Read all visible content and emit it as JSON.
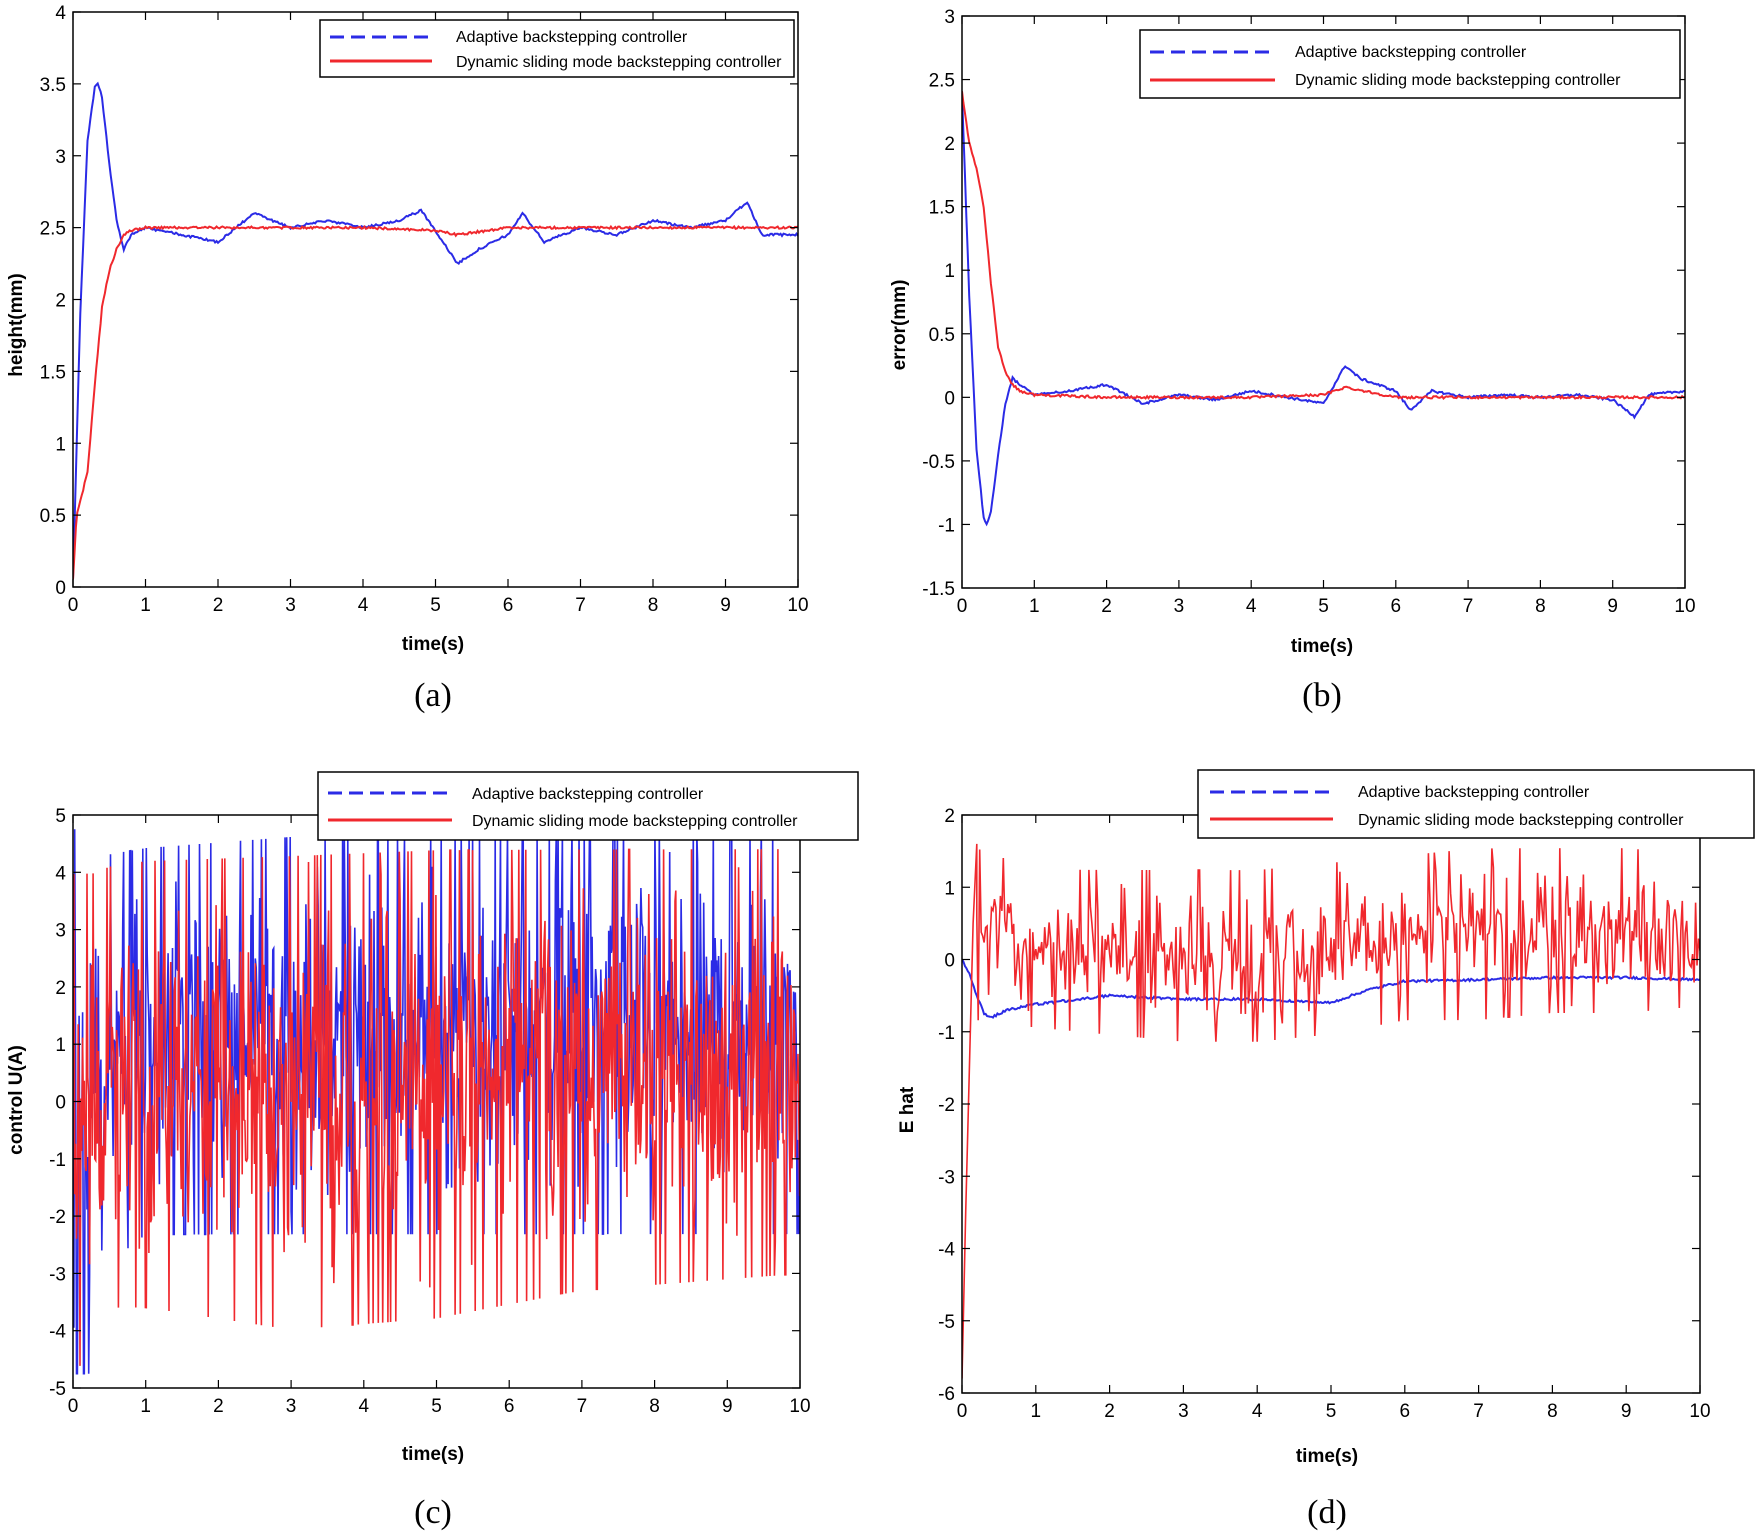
{
  "figure": {
    "colors": {
      "adaptive": "#2b2be6",
      "sliding": "#f0282d",
      "axes": "#000000"
    },
    "legend_labels": [
      "Adaptive backstepping controller",
      "Dynamic sliding mode backstepping controller"
    ]
  },
  "chart_data": [
    {
      "id": "a",
      "type": "line",
      "caption": "(a)",
      "xlabel": "time(s)",
      "ylabel": "height(mm)",
      "xlim": [
        0,
        10
      ],
      "ylim": [
        0,
        4
      ],
      "xticks": [
        0,
        1,
        2,
        3,
        4,
        5,
        6,
        7,
        8,
        9,
        10
      ],
      "yticks": [
        0,
        0.5,
        1,
        1.5,
        2,
        2.5,
        3,
        3.5,
        4
      ],
      "legend": {
        "entries": [
          "Adaptive backstepping controller",
          "Dynamic sliding mode backstepping controller"
        ],
        "location": "top-right"
      },
      "series": [
        {
          "name": "Adaptive backstepping controller",
          "color": "#2b2be6",
          "x": [
            0,
            0.1,
            0.2,
            0.3,
            0.35,
            0.4,
            0.5,
            0.6,
            0.7,
            0.8,
            1,
            1.5,
            2,
            2.5,
            3,
            3.5,
            4,
            4.5,
            4.8,
            5,
            5.3,
            5.6,
            6,
            6.2,
            6.5,
            7,
            7.5,
            8,
            8.5,
            9,
            9.3,
            9.5,
            10
          ],
          "y": [
            0.05,
            1.9,
            3.1,
            3.48,
            3.5,
            3.4,
            2.95,
            2.55,
            2.35,
            2.45,
            2.5,
            2.45,
            2.4,
            2.6,
            2.5,
            2.55,
            2.5,
            2.55,
            2.62,
            2.48,
            2.25,
            2.35,
            2.45,
            2.6,
            2.4,
            2.5,
            2.45,
            2.55,
            2.5,
            2.55,
            2.68,
            2.45,
            2.45
          ]
        },
        {
          "name": "Dynamic sliding mode backstepping controller",
          "color": "#f0282d",
          "x": [
            0,
            0.05,
            0.1,
            0.2,
            0.3,
            0.4,
            0.5,
            0.6,
            0.7,
            0.8,
            1,
            1.5,
            2,
            3,
            4,
            5,
            5.3,
            6,
            7,
            8,
            9,
            10
          ],
          "y": [
            0.05,
            0.5,
            0.6,
            0.8,
            1.4,
            1.95,
            2.2,
            2.35,
            2.45,
            2.48,
            2.5,
            2.5,
            2.5,
            2.5,
            2.5,
            2.48,
            2.45,
            2.5,
            2.5,
            2.5,
            2.5,
            2.5
          ]
        }
      ]
    },
    {
      "id": "b",
      "type": "line",
      "caption": "(b)",
      "xlabel": "time(s)",
      "ylabel": "error(mm)",
      "xlim": [
        0,
        10
      ],
      "ylim": [
        -1.5,
        3
      ],
      "xticks": [
        0,
        1,
        2,
        3,
        4,
        5,
        6,
        7,
        8,
        9,
        10
      ],
      "yticks": [
        -1.5,
        -1,
        -0.5,
        0,
        0.5,
        1,
        1.5,
        2,
        2.5,
        3
      ],
      "legend": {
        "entries": [
          "Adaptive backstepping controller",
          "Dynamic sliding mode backstepping controller"
        ],
        "location": "top-right"
      },
      "series": [
        {
          "name": "Adaptive backstepping controller",
          "color": "#2b2be6",
          "x": [
            0,
            0.1,
            0.2,
            0.3,
            0.35,
            0.4,
            0.5,
            0.6,
            0.7,
            0.8,
            1,
            1.5,
            2,
            2.5,
            3,
            3.5,
            4,
            4.5,
            5,
            5.3,
            5.5,
            6,
            6.2,
            6.5,
            7,
            7.5,
            8,
            8.5,
            9,
            9.3,
            9.5,
            10
          ],
          "y": [
            2.4,
            0.8,
            -0.4,
            -0.95,
            -1.0,
            -0.9,
            -0.45,
            -0.05,
            0.15,
            0.1,
            0.02,
            0.05,
            0.1,
            -0.05,
            0.02,
            -0.02,
            0.05,
            0.0,
            -0.05,
            0.25,
            0.15,
            0.05,
            -0.1,
            0.05,
            0.0,
            0.02,
            0.0,
            0.02,
            -0.02,
            -0.15,
            0.02,
            0.05
          ]
        },
        {
          "name": "Dynamic sliding mode backstepping controller",
          "color": "#f0282d",
          "x": [
            0,
            0.1,
            0.2,
            0.3,
            0.4,
            0.5,
            0.6,
            0.7,
            0.8,
            1,
            2,
            3,
            4,
            5,
            5.3,
            6,
            7,
            8,
            9,
            10
          ],
          "y": [
            2.4,
            2.0,
            1.8,
            1.5,
            0.9,
            0.4,
            0.2,
            0.1,
            0.05,
            0.02,
            0.0,
            0.0,
            0.0,
            0.02,
            0.08,
            0.0,
            0.0,
            0.0,
            0.0,
            0.0
          ]
        }
      ]
    },
    {
      "id": "c",
      "type": "line",
      "caption": "(c)",
      "xlabel": "time(s)",
      "ylabel": "control U(A)",
      "xlim": [
        0,
        10
      ],
      "ylim": [
        -5,
        5
      ],
      "xticks": [
        0,
        1,
        2,
        3,
        4,
        5,
        6,
        7,
        8,
        9,
        10
      ],
      "yticks": [
        -5,
        -4,
        -3,
        -2,
        -1,
        0,
        1,
        2,
        3,
        4,
        5
      ],
      "legend": {
        "entries": [
          "Adaptive backstepping controller",
          "Dynamic sliding mode backstepping controller"
        ],
        "location": "top-right"
      },
      "series": [
        {
          "name": "Adaptive backstepping controller",
          "color": "#2b2be6",
          "noise": "random",
          "envelope_x": [
            0,
            0.3,
            0.5,
            1,
            3,
            5,
            7,
            10
          ],
          "lower": [
            -5,
            -5,
            -3,
            -2.5,
            -2.5,
            -2.5,
            -2.5,
            -2.5
          ],
          "upper": [
            5,
            5,
            4.5,
            4.6,
            4.8,
            4.8,
            4.9,
            4.9
          ]
        },
        {
          "name": "Dynamic sliding mode backstepping controller",
          "color": "#f0282d",
          "noise": "random",
          "envelope_x": [
            0,
            0.3,
            0.5,
            1,
            3,
            5,
            7,
            10
          ],
          "lower": [
            -5,
            -4.5,
            -3.8,
            -3.8,
            -4.2,
            -4,
            -3.5,
            -3.2
          ],
          "upper": [
            4.2,
            4.2,
            4.3,
            4.4,
            4.5,
            4.6,
            4.6,
            4.6
          ]
        }
      ]
    },
    {
      "id": "d",
      "type": "line",
      "caption": "(d)",
      "xlabel": "time(s)",
      "ylabel": "E hat",
      "xlim": [
        0,
        10
      ],
      "ylim": [
        -6,
        2
      ],
      "xticks": [
        0,
        1,
        2,
        3,
        4,
        5,
        6,
        7,
        8,
        9,
        10
      ],
      "yticks": [
        -6,
        -5,
        -4,
        -3,
        -2,
        -1,
        0,
        1,
        2
      ],
      "legend": {
        "entries": [
          "Adaptive backstepping controller",
          "Dynamic sliding mode backstepping controller"
        ],
        "location": "top-right"
      },
      "series": [
        {
          "name": "Adaptive backstepping controller",
          "color": "#2b2be6",
          "x": [
            0,
            0.1,
            0.2,
            0.3,
            0.4,
            0.6,
            1,
            2,
            3,
            4,
            5,
            5.5,
            6,
            7,
            8,
            9,
            10
          ],
          "y": [
            0,
            -0.2,
            -0.5,
            -0.75,
            -0.8,
            -0.7,
            -0.62,
            -0.5,
            -0.55,
            -0.55,
            -0.6,
            -0.42,
            -0.3,
            -0.28,
            -0.25,
            -0.25,
            -0.28
          ]
        },
        {
          "name": "Dynamic sliding mode backstepping controller",
          "color": "#f0282d",
          "noise": "random",
          "spike_x": [
            0,
            0.05,
            0.1,
            0.15,
            0.2
          ],
          "spike_y": [
            -5.8,
            -3.5,
            -1.5,
            0.5,
            1.6
          ],
          "envelope_x": [
            0.2,
            1,
            2,
            3,
            4,
            5,
            6,
            7,
            8,
            9,
            10
          ],
          "lower": [
            -0.9,
            -1,
            -1.1,
            -1.2,
            -1.2,
            -1.1,
            -0.9,
            -0.9,
            -0.8,
            -0.8,
            -0.7
          ],
          "upper": [
            1.6,
            1.3,
            1.3,
            1.3,
            1.3,
            1.4,
            1.5,
            1.6,
            1.6,
            1.6,
            1.5
          ]
        }
      ]
    }
  ]
}
